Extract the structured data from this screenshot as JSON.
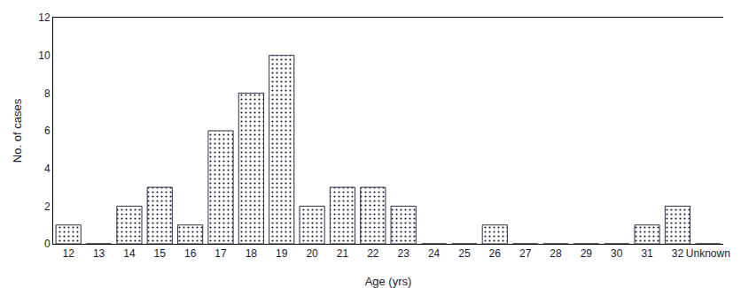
{
  "chart_data": {
    "type": "bar",
    "categories": [
      "12",
      "13",
      "14",
      "15",
      "16",
      "17",
      "18",
      "19",
      "20",
      "21",
      "22",
      "23",
      "24",
      "25",
      "26",
      "27",
      "28",
      "29",
      "30",
      "31",
      "32",
      "Unknown"
    ],
    "values": [
      1,
      0,
      2,
      3,
      1,
      6,
      8,
      10,
      2,
      3,
      3,
      2,
      0,
      0,
      1,
      0,
      0,
      0,
      0,
      1,
      2,
      0
    ],
    "color": "#5b82c8",
    "xlabel": "Age (yrs)",
    "ylabel": "No. of cases",
    "ylim": [
      0,
      12
    ],
    "yticks": [
      0,
      2,
      4,
      6,
      8,
      10,
      12
    ],
    "grid": false
  }
}
